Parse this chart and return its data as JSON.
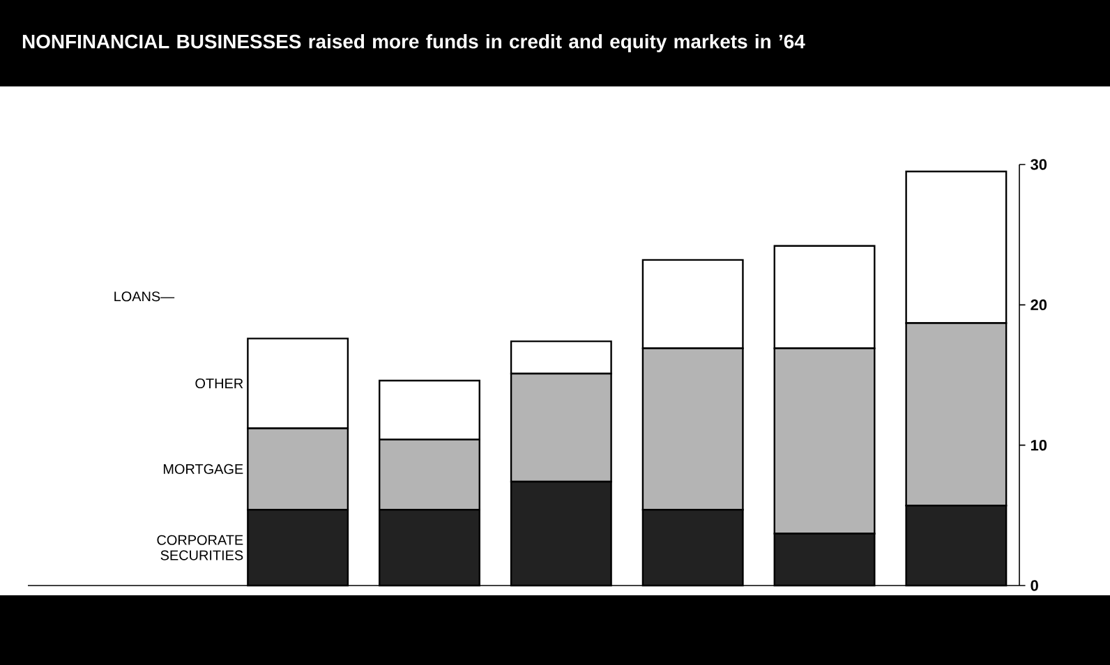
{
  "chart_data": {
    "type": "bar",
    "stacked": true,
    "title": "NONFINANCIAL BUSINESSES raised more funds in credit and equity markets in ’64",
    "categories": [
      null,
      null,
      null,
      null,
      null,
      null
    ],
    "series": [
      {
        "name": "CORPORATE SECURITIES",
        "color": "#222222",
        "values": [
          5.4,
          5.4,
          7.4,
          5.4,
          3.7,
          5.7
        ]
      },
      {
        "name": "MORTGAGE",
        "color": "#b4b4b4",
        "values": [
          5.8,
          5.0,
          7.7,
          11.5,
          13.2,
          13.0
        ]
      },
      {
        "name": "OTHER",
        "color": "#ffffff",
        "values": [
          6.4,
          4.2,
          2.3,
          6.3,
          7.3,
          10.8
        ]
      }
    ],
    "annotations": [
      "LOANS—"
    ],
    "ylim": [
      0,
      30
    ],
    "yticks": [
      0,
      10,
      20,
      30
    ]
  }
}
